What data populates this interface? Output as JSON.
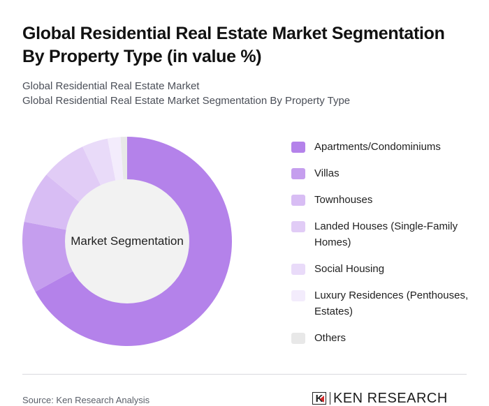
{
  "header": {
    "title": "Global Residential Real Estate Market Segmentation By Property Type (in value %)",
    "subtitle_line1": "Global Residential Real Estate Market",
    "subtitle_line2": "Global Residential Real Estate Market Segmentation By Property Type"
  },
  "chart": {
    "center_label": "Market Segmentation"
  },
  "chart_data": {
    "type": "pie",
    "variant": "donut",
    "title": "Global Residential Real Estate Market Segmentation By Property Type (in value %)",
    "center_label": "Market Segmentation",
    "legend_position": "right",
    "categories": [
      "Apartments/Condominiums",
      "Villas",
      "Townhouses",
      "Landed Houses (Single-Family Homes)",
      "Social Housing",
      "Luxury Residences (Penthouses, Estates)",
      "Others"
    ],
    "values": [
      67,
      11,
      8,
      7,
      4,
      2,
      1
    ],
    "colors": [
      "#b482ea",
      "#c59eee",
      "#d8bdf4",
      "#e1ccf6",
      "#e9dbf9",
      "#f3ecfc",
      "#e8e8e8"
    ]
  },
  "legend": {
    "items": [
      {
        "label": "Apartments/Condominiums",
        "color": "#b482ea"
      },
      {
        "label": "Villas",
        "color": "#c59eee"
      },
      {
        "label": "Townhouses",
        "color": "#d8bdf4"
      },
      {
        "label": "Landed Houses (Single-Family Homes)",
        "color": "#e1ccf6"
      },
      {
        "label": "Social Housing",
        "color": "#e9dbf9"
      },
      {
        "label": "Luxury Residences (Penthouses, Estates)",
        "color": "#f3ecfc"
      },
      {
        "label": "Others",
        "color": "#e8e8e8"
      }
    ]
  },
  "footer": {
    "source": "Source: Ken Research Analysis",
    "logo_mark": "K",
    "logo_text": "KEN RESEARCH"
  }
}
